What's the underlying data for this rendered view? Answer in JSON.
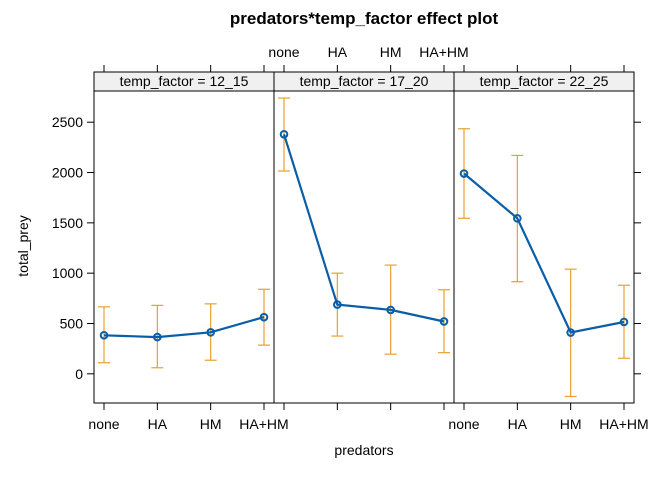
{
  "chart_data": {
    "type": "line",
    "title": "predators*temp_factor effect plot",
    "xlabel": "predators",
    "ylabel": "total_prey",
    "categories": [
      "none",
      "HA",
      "HM",
      "HA+HM"
    ],
    "ylim": [
      -290,
      2810
    ],
    "yticks": [
      0,
      500,
      1000,
      1500,
      2000,
      2500
    ],
    "grid": false,
    "colors": {
      "line": "#0a5ea8",
      "error": "#e8a030",
      "strip": "#f0f0f0"
    },
    "panels": [
      {
        "strip": "temp_factor = 12_15",
        "values": [
          383,
          365,
          412,
          563
        ],
        "lower": [
          110,
          60,
          135,
          285
        ],
        "upper": [
          665,
          680,
          695,
          840
        ]
      },
      {
        "strip": "temp_factor = 17_20",
        "values": [
          2380,
          688,
          635,
          520
        ],
        "lower": [
          2015,
          375,
          195,
          210
        ],
        "upper": [
          2740,
          1000,
          1080,
          835
        ]
      },
      {
        "strip": "temp_factor = 22_25",
        "values": [
          1990,
          1545,
          410,
          515
        ],
        "lower": [
          1545,
          915,
          -225,
          155
        ],
        "upper": [
          2435,
          2170,
          1040,
          880
        ]
      }
    ]
  }
}
